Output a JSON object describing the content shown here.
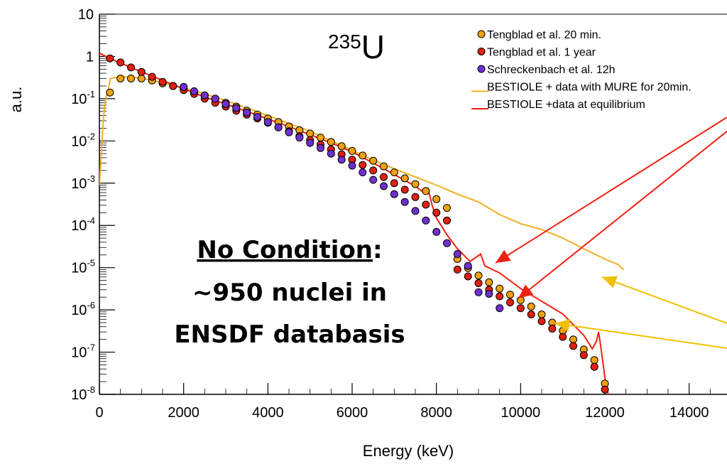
{
  "chart_data": {
    "type": "scatter",
    "title": "235U",
    "title_sup": "235",
    "title_base": "U",
    "xlabel": "Energy (keV)",
    "ylabel": "a.u.",
    "x_scale": "linear",
    "y_scale": "log",
    "xlim": [
      0,
      15000
    ],
    "ylim": [
      1e-08,
      10
    ],
    "xticks": [
      {
        "value": 0,
        "label": "0"
      },
      {
        "value": 2000,
        "label": "2000"
      },
      {
        "value": 4000,
        "label": "4000"
      },
      {
        "value": 6000,
        "label": "6000"
      },
      {
        "value": 8000,
        "label": "8000"
      },
      {
        "value": 10000,
        "label": "10000"
      },
      {
        "value": 12000,
        "label": "12000"
      },
      {
        "value": 14000,
        "label": "14000"
      }
    ],
    "yticks": [
      {
        "value": 10,
        "base": "10",
        "exp": ""
      },
      {
        "value": 1,
        "base": "1",
        "exp": ""
      },
      {
        "value": 0.1,
        "base": "10",
        "exp": "-1"
      },
      {
        "value": 0.01,
        "base": "10",
        "exp": "-2"
      },
      {
        "value": 0.001,
        "base": "10",
        "exp": "-3"
      },
      {
        "value": 0.0001,
        "base": "10",
        "exp": "-4"
      },
      {
        "value": 1e-05,
        "base": "10",
        "exp": "-5"
      },
      {
        "value": 1e-06,
        "base": "10",
        "exp": "-6"
      },
      {
        "value": 1e-07,
        "base": "10",
        "exp": "-7"
      },
      {
        "value": 1e-08,
        "base": "10",
        "exp": "-8"
      }
    ],
    "legend_position": "top-right",
    "series": [
      {
        "name": "Tengblad et al. 20 min.",
        "kind": "points",
        "color": "#f0a010",
        "points": [
          [
            250,
            0.14
          ],
          [
            500,
            0.3
          ],
          [
            750,
            0.3
          ],
          [
            1000,
            0.3
          ],
          [
            1250,
            0.27
          ],
          [
            1500,
            0.23
          ],
          [
            1750,
            0.2
          ],
          [
            2000,
            0.17
          ],
          [
            2250,
            0.14
          ],
          [
            2500,
            0.12
          ],
          [
            2750,
            0.1
          ],
          [
            3000,
            0.08
          ],
          [
            3250,
            0.065
          ],
          [
            3500,
            0.052
          ],
          [
            3750,
            0.042
          ],
          [
            4000,
            0.034
          ],
          [
            4250,
            0.028
          ],
          [
            4500,
            0.022
          ],
          [
            4750,
            0.018
          ],
          [
            5000,
            0.015
          ],
          [
            5250,
            0.012
          ],
          [
            5500,
            0.0095
          ],
          [
            5750,
            0.0075
          ],
          [
            6000,
            0.0058
          ],
          [
            6250,
            0.0045
          ],
          [
            6500,
            0.0034
          ],
          [
            6750,
            0.0025
          ],
          [
            7000,
            0.0018
          ],
          [
            7250,
            0.0013
          ],
          [
            7500,
            0.00095
          ],
          [
            7750,
            0.00065
          ],
          [
            8000,
            0.00042
          ],
          [
            8250,
            0.00026
          ],
          [
            8500,
            1.6e-05
          ],
          [
            8750,
            9.8e-06
          ],
          [
            9000,
            6.5e-06
          ],
          [
            9250,
            4.5e-06
          ],
          [
            9500,
            3.2e-06
          ],
          [
            9750,
            2.3e-06
          ],
          [
            10000,
            1.7e-06
          ],
          [
            10250,
            1.2e-06
          ],
          [
            10500,
            7.8e-07
          ],
          [
            10750,
            5e-07
          ],
          [
            11000,
            3.2e-07
          ],
          [
            11250,
            2e-07
          ],
          [
            11500,
            1.15e-07
          ],
          [
            11750,
            6.5e-08
          ],
          [
            12000,
            1.8e-08
          ]
        ]
      },
      {
        "name": "Tengblad et al. 1 year",
        "kind": "points",
        "color": "#e02010",
        "points": [
          [
            250,
            0.9
          ],
          [
            500,
            0.72
          ],
          [
            750,
            0.55
          ],
          [
            1000,
            0.43
          ],
          [
            1250,
            0.33
          ],
          [
            1500,
            0.25
          ],
          [
            1750,
            0.2
          ],
          [
            2000,
            0.16
          ],
          [
            2250,
            0.13
          ],
          [
            2500,
            0.1
          ],
          [
            2750,
            0.08
          ],
          [
            3000,
            0.065
          ],
          [
            3250,
            0.052
          ],
          [
            3500,
            0.042
          ],
          [
            3750,
            0.034
          ],
          [
            4000,
            0.027
          ],
          [
            4250,
            0.021
          ],
          [
            4500,
            0.017
          ],
          [
            4750,
            0.013
          ],
          [
            5000,
            0.0105
          ],
          [
            5250,
            0.0082
          ],
          [
            5500,
            0.0063
          ],
          [
            5750,
            0.0048
          ],
          [
            6000,
            0.0036
          ],
          [
            6250,
            0.0027
          ],
          [
            6500,
            0.002
          ],
          [
            6750,
            0.0014
          ],
          [
            7000,
            0.001
          ],
          [
            7250,
            0.0007
          ],
          [
            7500,
            0.00047
          ],
          [
            7750,
            0.00031
          ],
          [
            8000,
            0.0002
          ],
          [
            8250,
            0.00013
          ],
          [
            8500,
            9e-06
          ],
          [
            8750,
            6.2e-06
          ],
          [
            9000,
            4.3e-06
          ],
          [
            9250,
            3e-06
          ],
          [
            9500,
            2.1e-06
          ],
          [
            9750,
            1.5e-06
          ],
          [
            10000,
            1.1e-06
          ],
          [
            10250,
            7.8e-07
          ],
          [
            10500,
            5.4e-07
          ],
          [
            10750,
            3.6e-07
          ],
          [
            11000,
            2.3e-07
          ],
          [
            11250,
            1.4e-07
          ],
          [
            11500,
            8.5e-08
          ],
          [
            11750,
            4.5e-08
          ],
          [
            12000,
            1.3e-08
          ]
        ]
      },
      {
        "name": "Schreckenbach et al. 12h",
        "kind": "points",
        "color": "#7030d0",
        "points": [
          [
            2000,
            0.19
          ],
          [
            2250,
            0.15
          ],
          [
            2500,
            0.12
          ],
          [
            2750,
            0.1
          ],
          [
            3000,
            0.075
          ],
          [
            3250,
            0.06
          ],
          [
            3500,
            0.047
          ],
          [
            3750,
            0.037
          ],
          [
            4000,
            0.028
          ],
          [
            4250,
            0.021
          ],
          [
            4500,
            0.016
          ],
          [
            4750,
            0.012
          ],
          [
            5000,
            0.009
          ],
          [
            5250,
            0.0068
          ],
          [
            5500,
            0.005
          ],
          [
            5750,
            0.0036
          ],
          [
            6000,
            0.0026
          ],
          [
            6250,
            0.0018
          ],
          [
            6500,
            0.0012
          ],
          [
            6750,
            0.00085
          ],
          [
            7000,
            0.00055
          ],
          [
            7250,
            0.00036
          ],
          [
            7500,
            0.00022
          ],
          [
            7750,
            0.00013
          ],
          [
            8000,
            7e-05
          ],
          [
            8250,
            3.8e-05
          ],
          [
            8500,
            2.1e-05
          ],
          [
            8750,
            1.1e-05
          ],
          [
            9000,
            2.6e-06
          ],
          [
            9250,
            2.4e-06
          ],
          [
            9500,
            1.1e-06
          ]
        ]
      },
      {
        "name": "BESTIOLE + data with MURE for 20min.",
        "kind": "line",
        "color": "#f0b020",
        "points": [
          [
            0,
            0.0009
          ],
          [
            40,
            0.004
          ],
          [
            80,
            0.02
          ],
          [
            120,
            0.06
          ],
          [
            160,
            0.11
          ],
          [
            200,
            0.14
          ],
          [
            260,
            0.3
          ],
          [
            400,
            0.32
          ],
          [
            600,
            0.33
          ],
          [
            1000,
            0.31
          ],
          [
            1500,
            0.24
          ],
          [
            2000,
            0.18
          ],
          [
            2500,
            0.13
          ],
          [
            3000,
            0.09
          ],
          [
            3500,
            0.06
          ],
          [
            4000,
            0.04
          ],
          [
            4500,
            0.026
          ],
          [
            5000,
            0.017
          ],
          [
            5500,
            0.01
          ],
          [
            6000,
            0.006
          ],
          [
            6500,
            0.0035
          ],
          [
            7000,
            0.0022
          ],
          [
            7500,
            0.0014
          ],
          [
            8000,
            0.0009
          ],
          [
            8500,
            0.00055
          ],
          [
            9000,
            0.00036
          ],
          [
            9500,
            0.00018
          ],
          [
            10000,
            0.00011
          ],
          [
            10500,
            8e-05
          ],
          [
            11000,
            5e-05
          ],
          [
            11500,
            2.8e-05
          ],
          [
            12000,
            1.6e-05
          ],
          [
            12300,
            1.2e-05
          ],
          [
            12450,
            9e-06
          ]
        ]
      },
      {
        "name": "BESTIOLE +data at equilibrium",
        "kind": "line",
        "color": "#f02010",
        "points": [
          [
            0,
            1.2
          ],
          [
            250,
            0.9
          ],
          [
            500,
            0.7
          ],
          [
            1000,
            0.43
          ],
          [
            1500,
            0.27
          ],
          [
            2000,
            0.17
          ],
          [
            2500,
            0.11
          ],
          [
            3000,
            0.075
          ],
          [
            3500,
            0.05
          ],
          [
            4000,
            0.033
          ],
          [
            4500,
            0.022
          ],
          [
            5000,
            0.014
          ],
          [
            5500,
            0.009
          ],
          [
            6000,
            0.0055
          ],
          [
            6500,
            0.003
          ],
          [
            7000,
            0.0016
          ],
          [
            7500,
            0.00085
          ],
          [
            7700,
            0.0006
          ],
          [
            7800,
            0.00075
          ],
          [
            7900,
            0.0003
          ],
          [
            8000,
            0.00015
          ],
          [
            8250,
            6e-05
          ],
          [
            8500,
            2.8e-05
          ],
          [
            8800,
            1.4e-05
          ],
          [
            9050,
            2.1e-05
          ],
          [
            9150,
            1.1e-05
          ],
          [
            9500,
            7.5e-06
          ],
          [
            10000,
            3.2e-06
          ],
          [
            10500,
            1.6e-06
          ],
          [
            11000,
            8e-07
          ],
          [
            11500,
            2.5e-07
          ],
          [
            11700,
            1.2e-07
          ],
          [
            11800,
            1.8e-07
          ],
          [
            11850,
            3e-07
          ],
          [
            11900,
            1.4e-07
          ],
          [
            12000,
            2.5e-08
          ],
          [
            12100,
            8e-09
          ]
        ]
      }
    ],
    "annotations": {
      "lines": [
        "No Condition:",
        "~950 nuclei in",
        "ENSDF databasis"
      ]
    }
  }
}
